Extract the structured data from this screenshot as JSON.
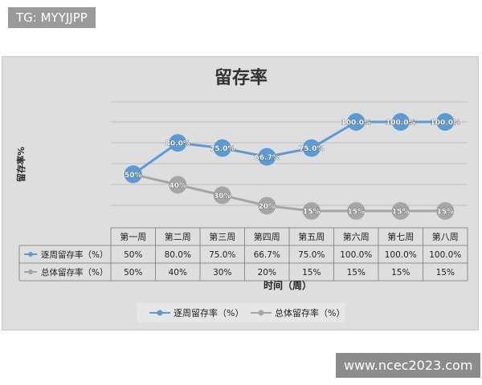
{
  "watermarks": {
    "top": "TG: MYYJJPP",
    "bottom": "www.ncec2023.com"
  },
  "colors": {
    "weekly": "#5b9bd5",
    "overall": "#a5a5a5",
    "background": "#dedede"
  },
  "chart_data": {
    "type": "line",
    "title": "留存率",
    "ylabel": "留存率%",
    "xlabel": "时间（周）",
    "categories": [
      "第一周",
      "第二周",
      "第三周",
      "第四周",
      "第五周",
      "第六周",
      "第七周",
      "第八周"
    ],
    "ylim": [
      0,
      100
    ],
    "grid": true,
    "legend_position": "bottom",
    "series": [
      {
        "name": "逐周留存率（%）",
        "color": "#5b9bd5",
        "values": [
          50,
          80,
          75,
          66.7,
          75,
          100,
          100,
          100
        ],
        "labels": [
          "50%",
          "80.0%",
          "75.0%",
          "66.7%",
          "75.0%",
          "100.0%",
          "100.0%",
          "100.0%"
        ],
        "table_values": [
          "50%",
          "80.0%",
          "75.0%",
          "66.7%",
          "75.0%",
          "100.0%",
          "100.0%",
          "100.0%"
        ]
      },
      {
        "name": "总体留存率（%）",
        "color": "#a5a5a5",
        "values": [
          50,
          40,
          30,
          20,
          15,
          15,
          15,
          15
        ],
        "labels": [
          "50%",
          "40%",
          "30%",
          "20%",
          "15%",
          "15%",
          "15%",
          "15%"
        ],
        "table_values": [
          "50%",
          "40%",
          "30%",
          "20%",
          "15%",
          "15%",
          "15%",
          "15%"
        ]
      }
    ]
  }
}
